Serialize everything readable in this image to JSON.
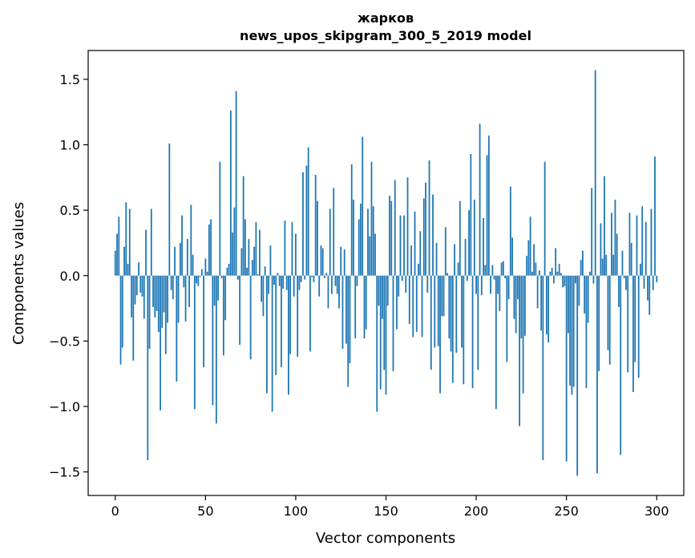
{
  "chart_data": {
    "type": "bar",
    "title": "жарков",
    "subtitle": "news_upos_skipgram_300_5_2019 model",
    "xlabel": "Vector components",
    "ylabel": "Components values",
    "xlim": [
      -15,
      315
    ],
    "ylim": [
      -1.68,
      1.72
    ],
    "xticks": [
      0,
      50,
      100,
      150,
      200,
      250,
      300
    ],
    "yticks": [
      -1.5,
      -1.0,
      -0.5,
      0.0,
      0.5,
      1.0,
      1.5
    ],
    "ytick_labels": [
      "−1.5",
      "−1.0",
      "−0.5",
      "0.0",
      "0.5",
      "1.0",
      "1.5"
    ],
    "grid": false,
    "bar_color": "#1f77b4",
    "values": [
      0.19,
      0.32,
      0.45,
      -0.68,
      -0.55,
      0.22,
      0.56,
      0.09,
      0.51,
      -0.32,
      -0.65,
      -0.22,
      -0.15,
      0.1,
      -0.13,
      -0.16,
      -0.33,
      0.35,
      -1.41,
      -0.56,
      0.51,
      -0.24,
      -0.32,
      -0.27,
      -0.43,
      -1.03,
      -0.4,
      -0.28,
      -0.6,
      -0.36,
      1.01,
      -0.11,
      -0.18,
      0.22,
      -0.81,
      -0.36,
      0.25,
      0.46,
      -0.09,
      -0.35,
      0.28,
      -0.24,
      0.54,
      0.16,
      -1.02,
      -0.06,
      -0.08,
      -0.01,
      0.05,
      -0.7,
      0.13,
      0.03,
      0.39,
      0.43,
      -0.99,
      -0.23,
      -1.13,
      -0.19,
      0.87,
      -0.02,
      -0.61,
      -0.34,
      0.06,
      0.09,
      1.26,
      0.33,
      0.52,
      1.41,
      -0.03,
      -0.53,
      0.21,
      0.76,
      0.43,
      0.06,
      0.28,
      -0.64,
      0.12,
      0.22,
      0.41,
      0.01,
      0.35,
      -0.2,
      -0.31,
      0.07,
      -0.9,
      -0.14,
      0.23,
      -1.04,
      -0.07,
      -0.76,
      0.02,
      -0.08,
      -0.7,
      -0.1,
      0.42,
      -0.11,
      -0.91,
      -0.6,
      0.41,
      -0.16,
      0.32,
      -0.62,
      -0.11,
      -0.05,
      0.79,
      -0.03,
      0.84,
      0.98,
      -0.58,
      -0.01,
      -0.05,
      0.77,
      0.57,
      -0.16,
      0.23,
      0.21,
      -0.02,
      0.02,
      -0.25,
      0.51,
      -0.14,
      0.67,
      -0.08,
      -0.14,
      -0.25,
      0.22,
      -0.56,
      0.2,
      -0.52,
      -0.85,
      -0.67,
      0.85,
      0.58,
      -0.48,
      -0.08,
      0.43,
      0.55,
      1.06,
      -0.48,
      -0.41,
      0.51,
      0.3,
      0.87,
      0.53,
      0.32,
      -1.04,
      -0.23,
      -0.87,
      -0.33,
      -0.72,
      -0.91,
      -0.23,
      0.61,
      0.57,
      -0.73,
      0.73,
      -0.41,
      -0.16,
      0.46,
      -0.04,
      0.46,
      -0.13,
      0.75,
      -0.37,
      0.23,
      -0.47,
      0.49,
      -0.43,
      0.09,
      0.34,
      -0.47,
      0.59,
      0.71,
      -0.13,
      0.88,
      -0.72,
      0.62,
      -0.55,
      0.25,
      -0.54,
      -0.9,
      -0.31,
      -0.31,
      0.37,
      0.02,
      -0.48,
      -0.58,
      -0.82,
      0.24,
      -0.59,
      0.1,
      0.57,
      -0.55,
      -0.83,
      0.28,
      -0.04,
      0.5,
      0.93,
      -0.86,
      0.58,
      -0.14,
      -0.72,
      1.16,
      -0.15,
      0.44,
      0.08,
      0.92,
      1.07,
      -0.14,
      0.08,
      -0.03,
      -1.02,
      -0.14,
      -0.27,
      0.1,
      0.11,
      -0.02,
      -0.66,
      -0.18,
      0.68,
      0.29,
      -0.33,
      -0.44,
      -0.18,
      -1.15,
      -0.48,
      -0.9,
      -0.46,
      0.15,
      0.27,
      0.45,
      0.03,
      0.24,
      0.1,
      -0.25,
      0.04,
      -0.42,
      -1.41,
      0.87,
      -0.45,
      -0.51,
      0.03,
      0.06,
      -0.06,
      0.21,
      0.03,
      0.09,
      0.02,
      -0.09,
      -0.08,
      -1.42,
      -0.44,
      -0.84,
      -0.91,
      -0.85,
      -0.06,
      -1.53,
      -0.23,
      0.12,
      0.19,
      -0.29,
      -0.86,
      -0.36,
      0.03,
      0.67,
      -0.06,
      1.57,
      -1.51,
      -0.73,
      0.4,
      0.13,
      0.76,
      0.16,
      -0.57,
      -0.68,
      0.48,
      0.16,
      0.58,
      0.32,
      -0.24,
      -1.37,
      0.19,
      -0.02,
      -0.11,
      -0.74,
      0.48,
      0.25,
      -0.89,
      -0.66,
      0.46,
      -0.78,
      0.09,
      0.53,
      -0.1,
      0.41,
      -0.19,
      -0.3,
      0.51,
      -0.11,
      0.91,
      -0.05
    ]
  }
}
